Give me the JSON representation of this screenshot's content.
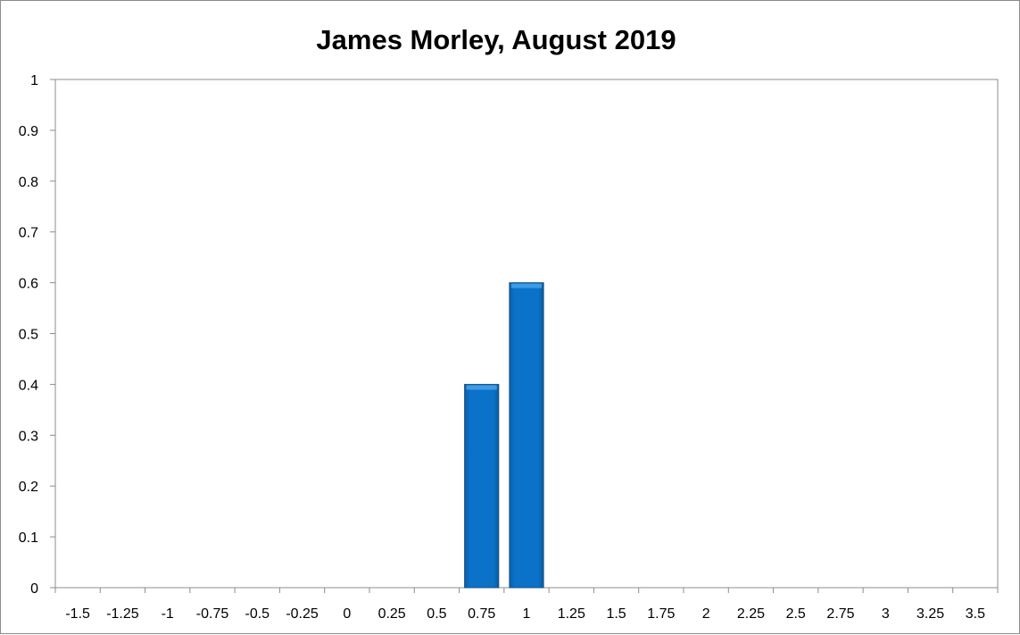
{
  "chart_data": {
    "type": "bar",
    "title": "James Morley, August 2019",
    "xlabel": "",
    "ylabel": "",
    "categories": [
      "-1.5",
      "-1.25",
      "-1",
      "-0.75",
      "-0.5",
      "-0.25",
      "0",
      "0.25",
      "0.5",
      "0.75",
      "1",
      "1.25",
      "1.5",
      "1.75",
      "2",
      "2.25",
      "2.5",
      "2.75",
      "3",
      "3.25",
      "3.5"
    ],
    "values": [
      0,
      0,
      0,
      0,
      0,
      0,
      0,
      0,
      0,
      0.4,
      0.6,
      0,
      0,
      0,
      0,
      0,
      0,
      0,
      0,
      0,
      0
    ],
    "y_ticks": [
      "0",
      "0.1",
      "0.2",
      "0.3",
      "0.4",
      "0.5",
      "0.6",
      "0.7",
      "0.8",
      "0.9",
      "1"
    ],
    "ylim": [
      0,
      1
    ],
    "grid": false,
    "legend": "none",
    "bar_color": "#0a72c8"
  }
}
